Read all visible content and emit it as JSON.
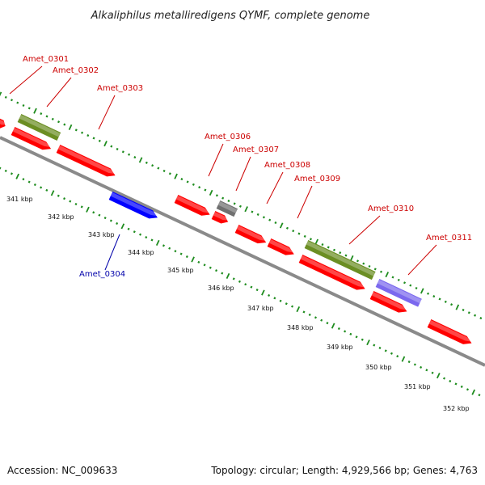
{
  "title": "Alkaliphilus metalliredigens QYMF, complete genome",
  "footer": {
    "accession": "Accession: NC_009633",
    "topology": "Topology: circular; Length: 4,929,566 bp; Genes: 4,763"
  },
  "colors": {
    "forward_cds": "#ff0000",
    "reverse_cds": "#0000ff",
    "olive_feature": "#6b8e23",
    "grey_feature": "#707070",
    "purple_feature": "#7b68ee",
    "forward_label": "#cc0000",
    "reverse_label": "#0000aa",
    "backbone": "#8a8a8a",
    "tick": "#1e8c1e"
  },
  "gene_labels": [
    {
      "name": "Amet_0301",
      "strand": "forward"
    },
    {
      "name": "Amet_0302",
      "strand": "forward"
    },
    {
      "name": "Amet_0303",
      "strand": "forward"
    },
    {
      "name": "Amet_0304",
      "strand": "reverse"
    },
    {
      "name": "Amet_0306",
      "strand": "forward"
    },
    {
      "name": "Amet_0307",
      "strand": "forward"
    },
    {
      "name": "Amet_0308",
      "strand": "forward"
    },
    {
      "name": "Amet_0309",
      "strand": "forward"
    },
    {
      "name": "Amet_0310",
      "strand": "forward"
    },
    {
      "name": "Amet_0311",
      "strand": "forward"
    }
  ],
  "scale_ticks": [
    "341 kbp",
    "342 kbp",
    "343 kbp",
    "344 kbp",
    "345 kbp",
    "346 kbp",
    "347 kbp",
    "348 kbp",
    "349 kbp",
    "350 kbp",
    "351 kbp",
    "352 kbp"
  ]
}
